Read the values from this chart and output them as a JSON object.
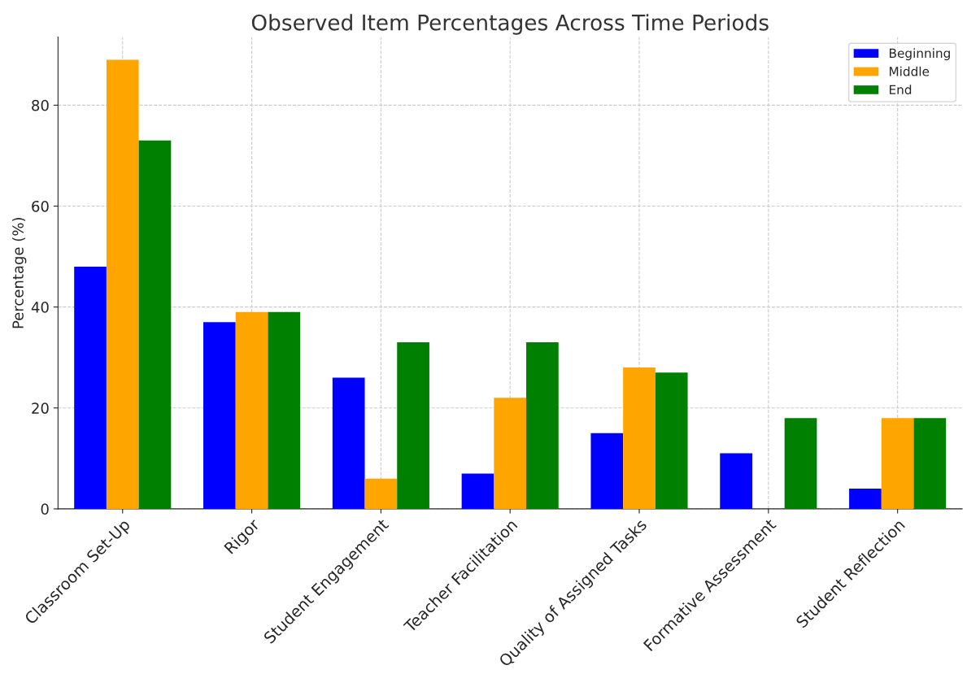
{
  "chart_data": {
    "type": "bar",
    "title": "Observed Item Percentages Across Time Periods",
    "ylabel": "Percentage (%)",
    "categories": [
      "Classroom Set-Up",
      "Rigor",
      "Student Engagement",
      "Teacher Facilitation",
      "Quality of Assigned Tasks",
      "Formative Assessment",
      "Student Reflection"
    ],
    "series": [
      {
        "name": "Beginning",
        "color": "#0000ff",
        "values": [
          48,
          37,
          26,
          7,
          15,
          11,
          4
        ]
      },
      {
        "name": "Middle",
        "color": "#ffa500",
        "values": [
          89,
          39,
          6,
          22,
          28,
          0,
          18
        ]
      },
      {
        "name": "End",
        "color": "#008000",
        "values": [
          73,
          39,
          33,
          33,
          27,
          18,
          18
        ]
      }
    ],
    "ylim": [
      0,
      93.5
    ],
    "yticks": [
      0,
      20,
      40,
      60,
      80
    ],
    "grid": true,
    "legend": "top right"
  }
}
